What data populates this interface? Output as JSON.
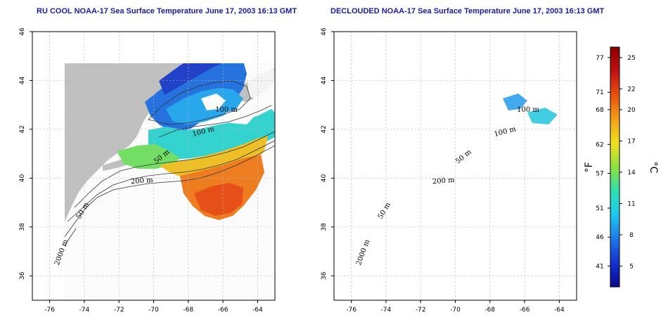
{
  "panels": [
    {
      "id": "left",
      "title": "RU COOL NOAA-17 Sea Surface Temperature June 17, 2003 16:13 GMT",
      "contour_labels": [
        "100 m",
        "100 m",
        "50 m",
        "200 m",
        "50 m",
        "2000 m"
      ]
    },
    {
      "id": "right",
      "title": "DECLOUDED NOAA-17 Sea Surface Temperature June 17, 2003 16:13 GMT",
      "contour_labels": [
        "100 m",
        "100 m",
        "50 m",
        "200 m",
        "50 m",
        "2000 m"
      ]
    }
  ],
  "axes": {
    "x_ticks": [
      "-76",
      "-74",
      "-72",
      "-70",
      "-68",
      "-66",
      "-64"
    ],
    "y_ticks": [
      "46",
      "44",
      "42",
      "40",
      "38",
      "36"
    ],
    "lon_range": [
      -77,
      -63
    ],
    "lat_range": [
      35,
      46
    ]
  },
  "colorbar": {
    "fahrenheit_ticks": [
      "77",
      "71",
      "68",
      "62",
      "57",
      "51",
      "46",
      "41"
    ],
    "celsius_ticks": [
      "25",
      "22",
      "20",
      "17",
      "14",
      "11",
      "8",
      "5"
    ],
    "fahrenheit_unit": "°F",
    "celsius_unit": "°C",
    "celsius_range": [
      3,
      26
    ],
    "stops": [
      "#0a0a8c",
      "#1430d0",
      "#1e78e6",
      "#1ec8f0",
      "#30e0b0",
      "#90e040",
      "#f0e020",
      "#f0a018",
      "#e85010",
      "#c01010",
      "#8a0000"
    ]
  },
  "colors": {
    "land": "#c0c0c0",
    "ocean": "#ffffff",
    "cloud": "#ffffff",
    "grid": "#b8b8b8",
    "title": "#1a1aa6"
  }
}
